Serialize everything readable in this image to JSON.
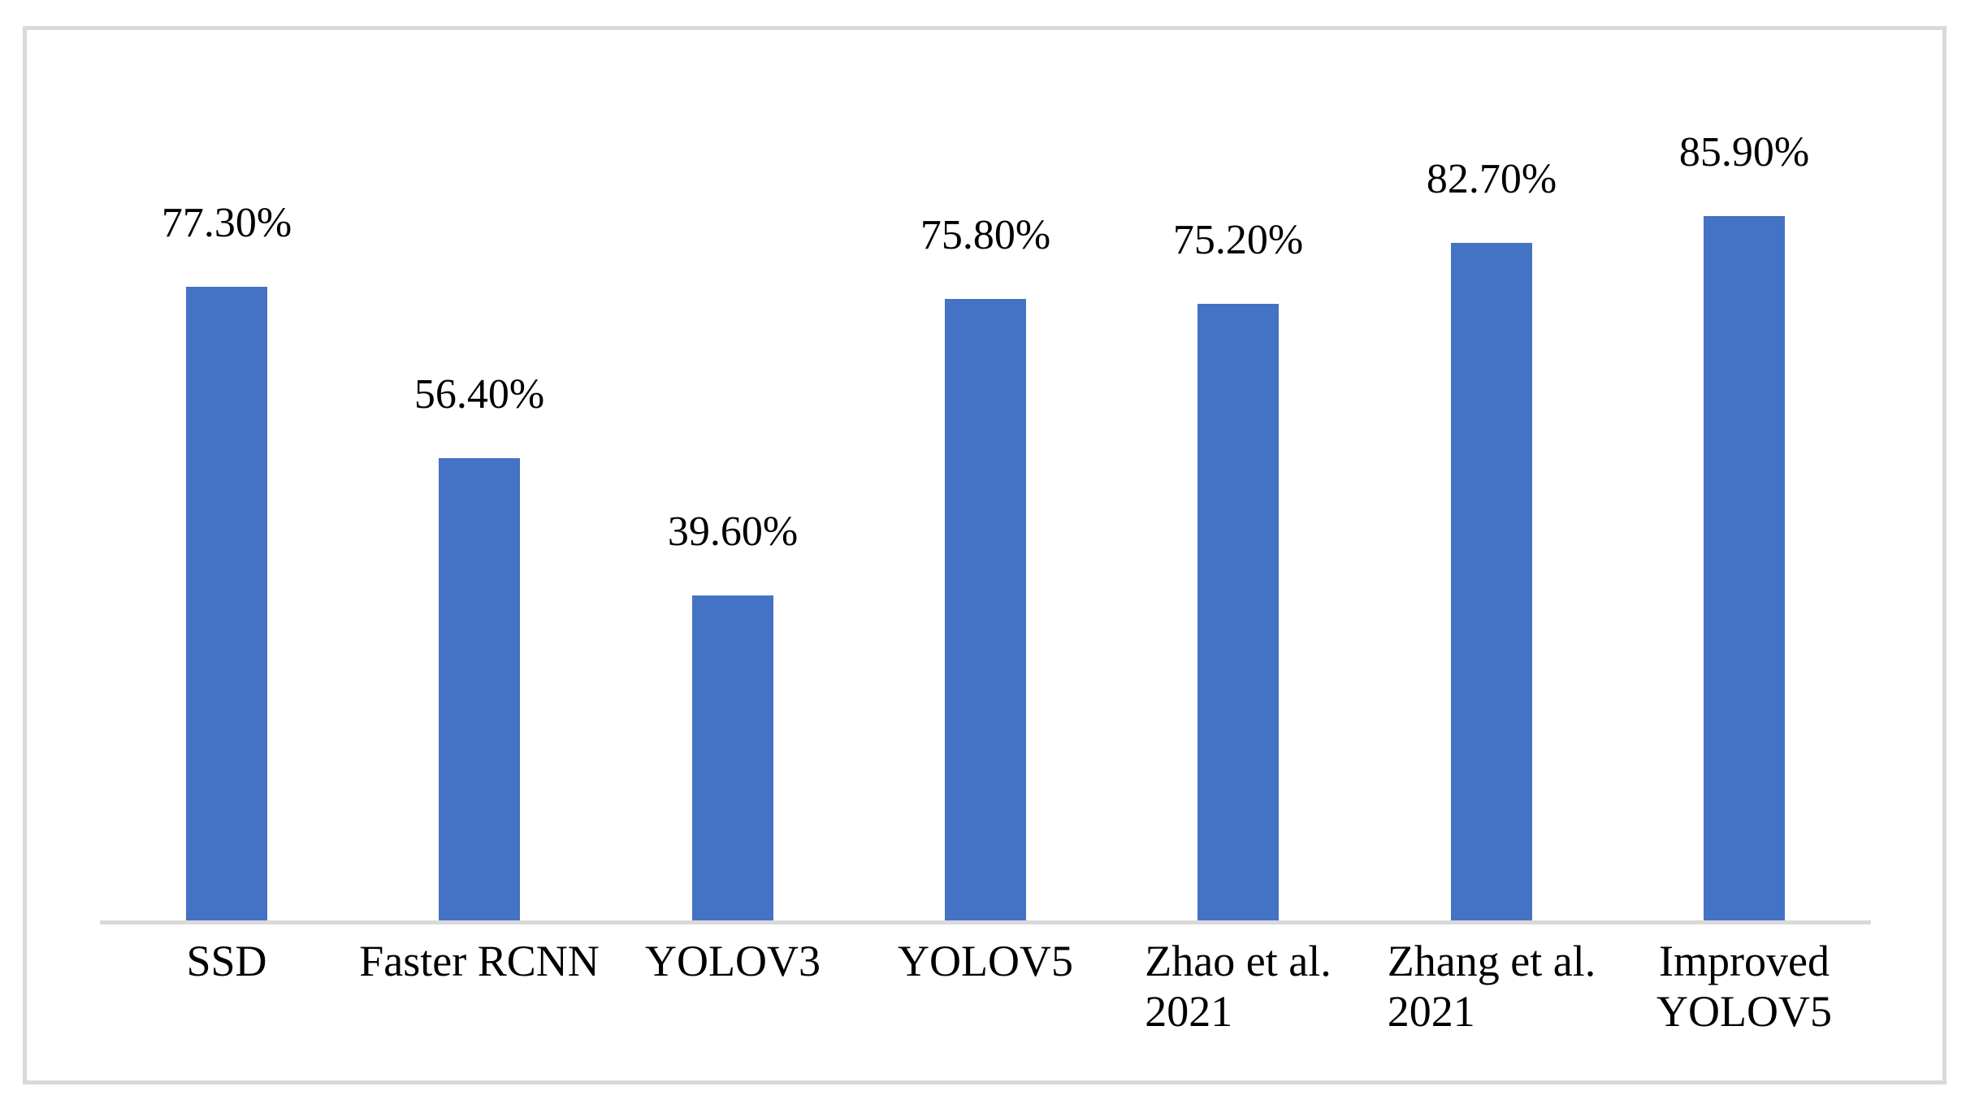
{
  "chart_data": {
    "type": "bar",
    "title": "",
    "xlabel": "",
    "ylabel": "",
    "categories": [
      "SSD",
      "Faster RCNN",
      "YOLOV3",
      "YOLOV5",
      "Zhao et al.\n2021",
      "Zhang et al.\n2021",
      "Improved\nYOLOV5"
    ],
    "values": [
      77.3,
      56.4,
      39.6,
      75.8,
      75.2,
      82.7,
      85.9
    ],
    "data_labels": [
      "77.30%",
      "56.40%",
      "39.60%",
      "75.80%",
      "75.20%",
      "82.70%",
      "85.90%"
    ],
    "ylim": [
      0,
      100
    ],
    "grid": false,
    "legend": false,
    "bar_color": "#4472C4",
    "axis_color": "#D9D9D9",
    "border_color": "#D9D9D9",
    "label_color": "#000000",
    "background": "#FFFFFF"
  }
}
